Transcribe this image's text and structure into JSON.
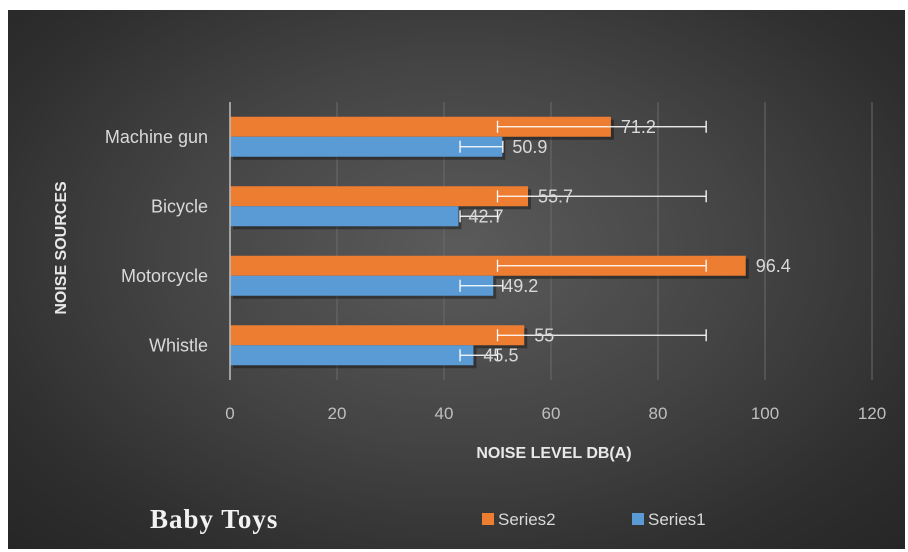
{
  "caption": "Baby Toys",
  "colors": {
    "series2": "#ed7d31",
    "series1": "#5b9bd5",
    "errorbar": "#ffffff",
    "gridline": "#6a6a6a",
    "axis": "#bfbfbf"
  },
  "chart_data": {
    "type": "bar",
    "orientation": "horizontal",
    "categories": [
      "Whistle",
      "Motorcycle",
      "Bicycle",
      "Machine gun"
    ],
    "series": [
      {
        "name": "Series1",
        "values": [
          45.5,
          49.2,
          42.7,
          50.9
        ],
        "labels": [
          "45.5",
          "49.2",
          "42.7",
          "50.9"
        ],
        "error_range": [
          [
            43,
            50
          ],
          [
            43,
            51
          ],
          [
            43,
            50
          ],
          [
            43,
            51
          ]
        ]
      },
      {
        "name": "Series2",
        "values": [
          55,
          96.4,
          55.7,
          71.2
        ],
        "labels": [
          "55",
          "96.4",
          "55.7",
          "71.2"
        ],
        "error_range": [
          [
            50,
            89
          ],
          [
            50,
            89
          ],
          [
            50,
            89
          ],
          [
            50,
            89
          ]
        ]
      }
    ],
    "xlabel": "NOISE LEVEL DB(A)",
    "ylabel": "NOISE SOURCES",
    "xlim": [
      0,
      120
    ],
    "xticks": [
      0,
      20,
      40,
      60,
      80,
      100,
      120
    ],
    "grid": "vertical",
    "legend_position": "bottom"
  }
}
